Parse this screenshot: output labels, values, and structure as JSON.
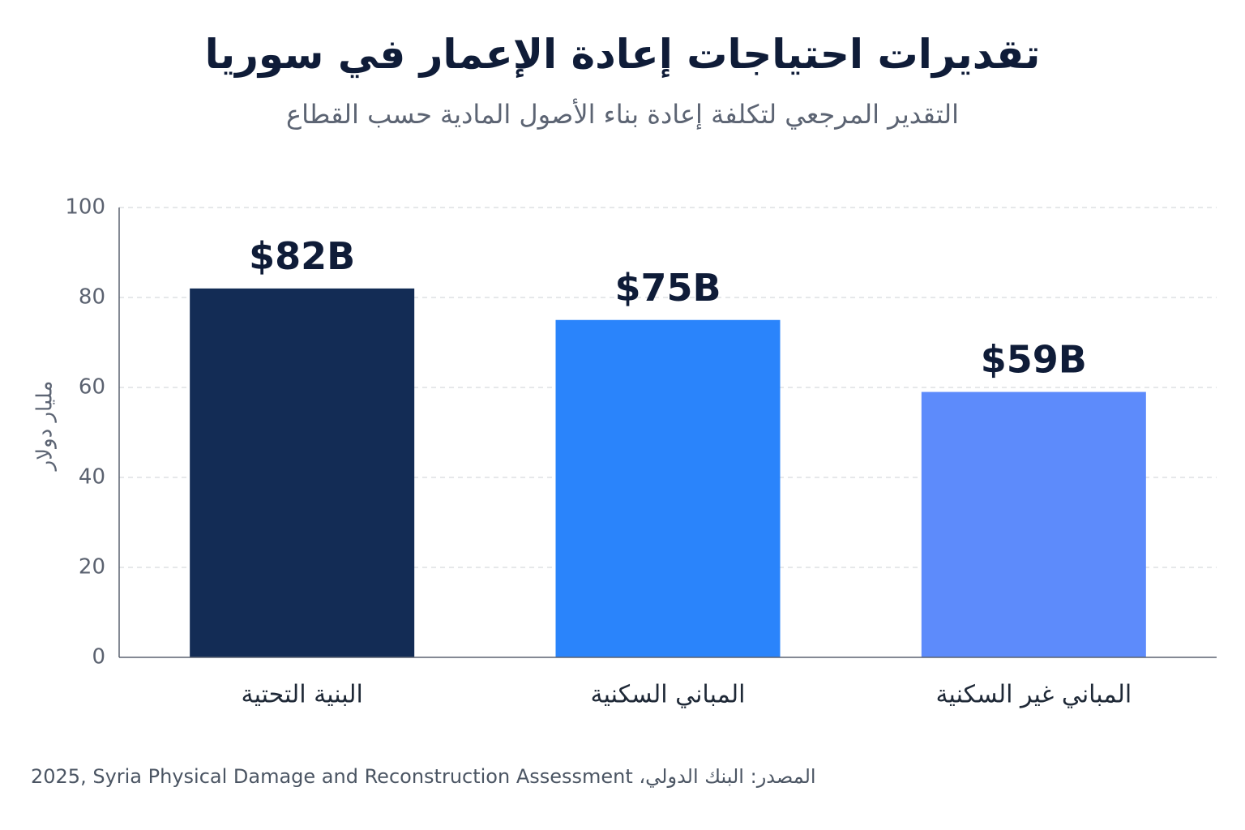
{
  "chart_data": {
    "type": "bar",
    "title": "تقديرات احتياجات إعادة الإعمار في سوريا",
    "subtitle": "التقدير المرجعي لتكلفة إعادة بناء الأصول المادية حسب القطاع",
    "ylabel": "مليار دولار",
    "xlabel": "",
    "categories": [
      "البنية التحتية",
      "المباني السكنية",
      "المباني غير السكنية"
    ],
    "values": [
      82,
      75,
      59
    ],
    "value_labels": [
      "$82B",
      "$75B",
      "$59B"
    ],
    "colors": [
      "#132c55",
      "#2a84fb",
      "#5d8bfb"
    ],
    "ylim": [
      0,
      100
    ],
    "yticks": [
      0,
      20,
      40,
      60,
      80,
      100
    ],
    "grid": true,
    "legend": "none"
  },
  "source": "2025, Syria Physical Damage and Reconstruction Assessment ،المصدر: البنك الدولي"
}
